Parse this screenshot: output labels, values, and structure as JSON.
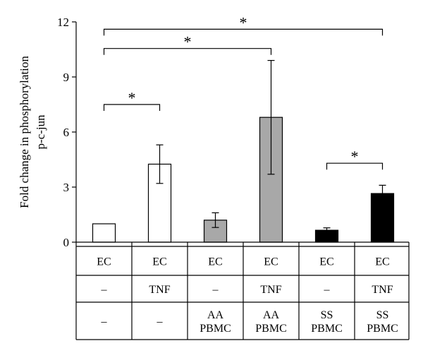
{
  "chart_data": {
    "type": "bar",
    "ylabel_lines": [
      "Fold change in phosphorylation",
      "p-c-jun"
    ],
    "ylim": [
      0,
      12
    ],
    "yticks": [
      "0",
      "3",
      "6",
      "9",
      "12"
    ],
    "grid": false,
    "legend": "none",
    "bars": [
      {
        "value": 1.0,
        "error": 0.0,
        "color": "#ffffff"
      },
      {
        "value": 4.25,
        "error": 1.05,
        "color": "#ffffff"
      },
      {
        "value": 1.2,
        "error": 0.4,
        "color": "#a8a8a8"
      },
      {
        "value": 6.8,
        "error": 3.1,
        "color": "#a8a8a8"
      },
      {
        "value": 0.65,
        "error": 0.13,
        "color": "#000000"
      },
      {
        "value": 2.65,
        "error": 0.45,
        "color": "#000000"
      }
    ],
    "table_rows": [
      [
        "EC",
        "EC",
        "EC",
        "EC",
        "EC",
        "EC"
      ],
      [
        "–",
        "TNF",
        "–",
        "TNF",
        "–",
        "TNF"
      ],
      [
        [
          "–"
        ],
        [
          "–"
        ],
        [
          "AA",
          "PBMC"
        ],
        [
          "AA",
          "PBMC"
        ],
        [
          "SS",
          "PBMC"
        ],
        [
          "SS",
          "PBMC"
        ]
      ]
    ],
    "significance": [
      {
        "from": 0,
        "to": 5,
        "label": "*",
        "level": 11.6
      },
      {
        "from": 0,
        "to": 3,
        "label": "*",
        "level": 10.55
      },
      {
        "from": 0,
        "to": 1,
        "label": "*",
        "level": 7.5
      },
      {
        "from": 4,
        "to": 5,
        "label": "*",
        "level": 4.3
      }
    ]
  }
}
